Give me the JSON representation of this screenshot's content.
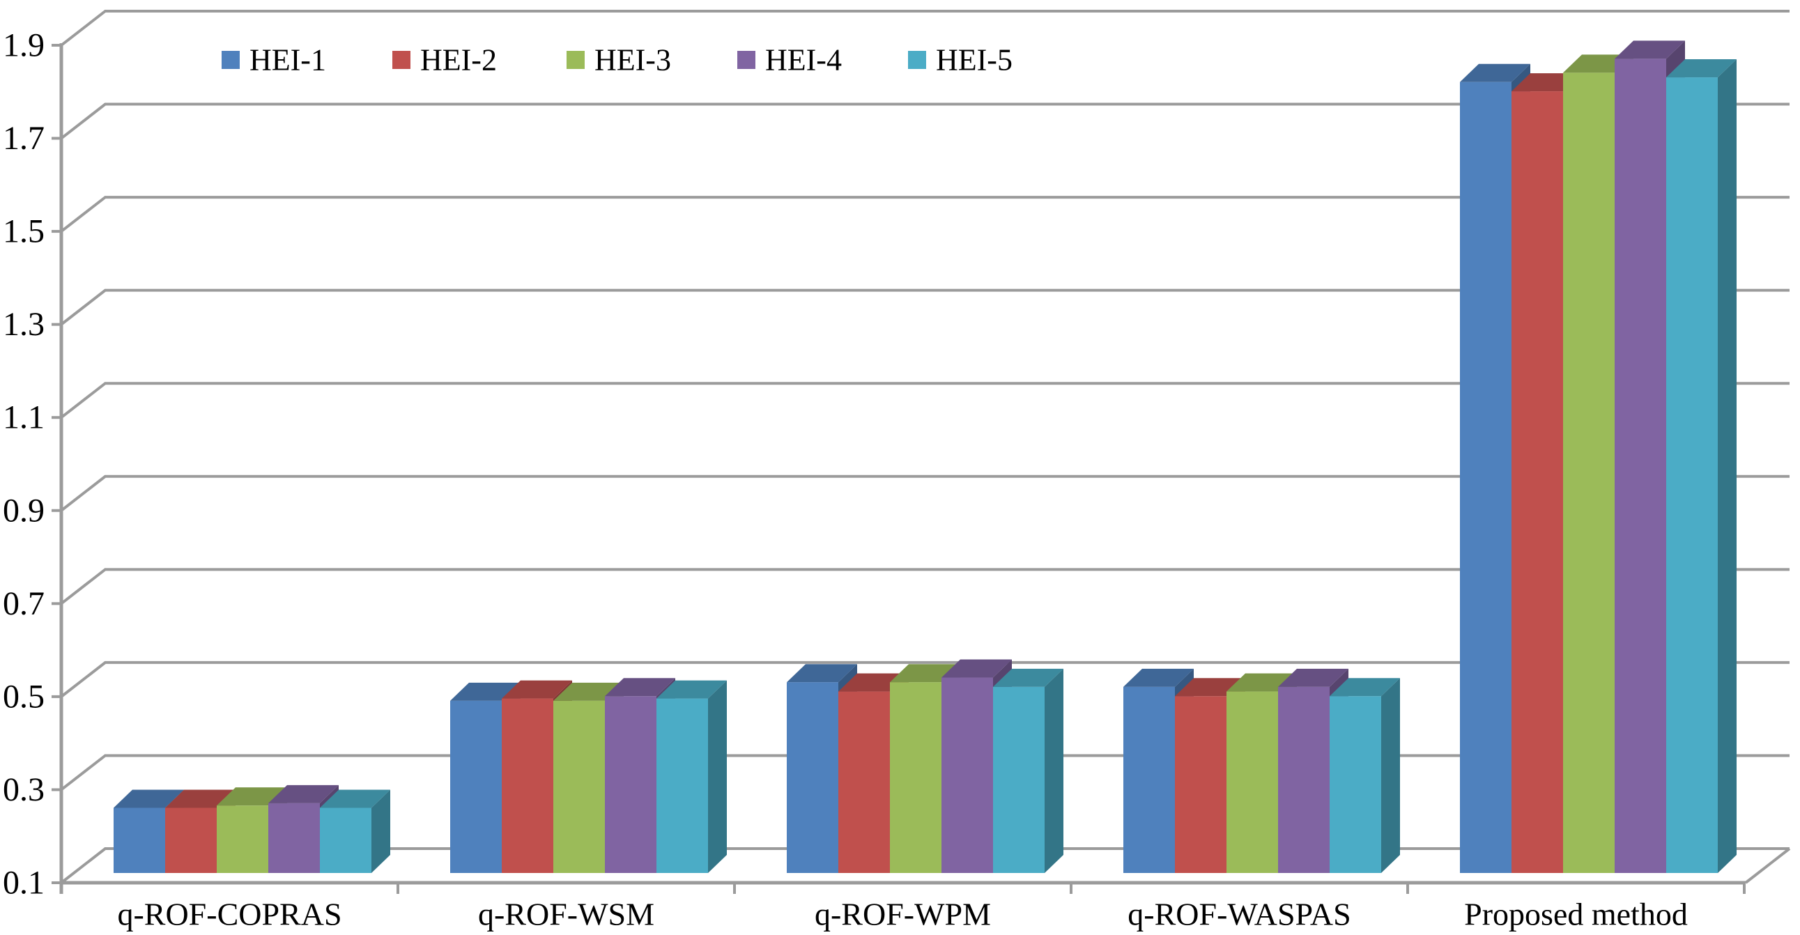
{
  "chart_data": {
    "type": "bar",
    "subtype": "3d-clustered-column",
    "title": "",
    "xlabel": "",
    "ylabel": "",
    "categories": [
      "q-ROF-COPRAS",
      "q-ROF-WSM",
      "q-ROF-WPM",
      "q-ROF-WASPAS",
      "Proposed method"
    ],
    "series": [
      {
        "name": "HEI-1",
        "color": "#4F81BD",
        "values": [
          0.24,
          0.47,
          0.51,
          0.5,
          1.8
        ]
      },
      {
        "name": "HEI-2",
        "color": "#C0504D",
        "values": [
          0.24,
          0.475,
          0.49,
          0.48,
          1.78
        ]
      },
      {
        "name": "HEI-3",
        "color": "#9BBB59",
        "values": [
          0.245,
          0.47,
          0.51,
          0.49,
          1.82
        ]
      },
      {
        "name": "HEI-4",
        "color": "#8064A2",
        "values": [
          0.25,
          0.48,
          0.52,
          0.5,
          1.85
        ]
      },
      {
        "name": "HEI-5",
        "color": "#4BACC6",
        "values": [
          0.24,
          0.475,
          0.5,
          0.48,
          1.81
        ]
      }
    ],
    "ylim": [
      0.1,
      1.9
    ],
    "ytick_step": 0.2,
    "ytick_labels": [
      "0.1",
      "0.3",
      "0.5",
      "0.7",
      "0.9",
      "1.1",
      "1.3",
      "1.5",
      "1.7",
      "1.9"
    ],
    "grid": true,
    "legend_position": "top",
    "axis_color": "#9B9B9B",
    "text_color": "#000000",
    "background_color": "#FFFFFF"
  }
}
